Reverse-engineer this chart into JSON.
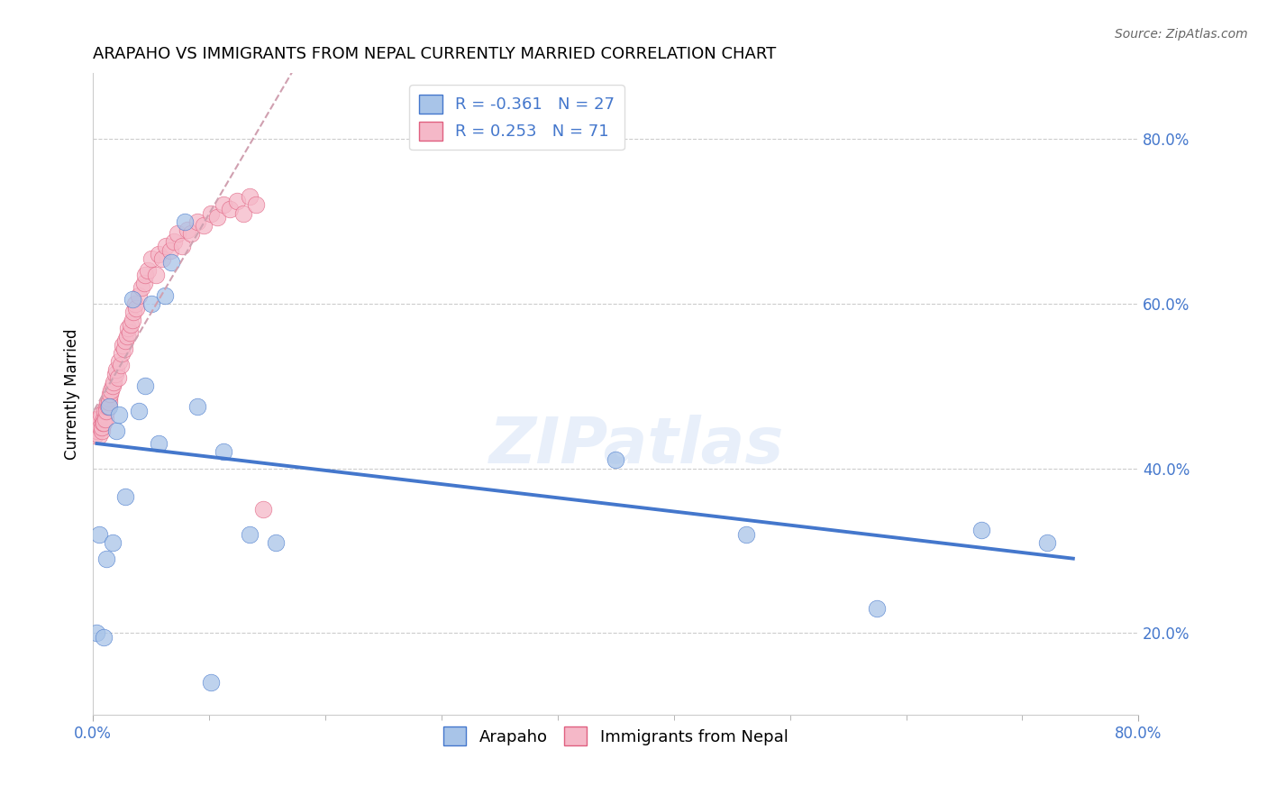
{
  "title": "ARAPAHO VS IMMIGRANTS FROM NEPAL CURRENTLY MARRIED CORRELATION CHART",
  "source": "Source: ZipAtlas.com",
  "ylabel": "Currently Married",
  "legend_blue_R": "-0.361",
  "legend_blue_N": "27",
  "legend_pink_R": "0.253",
  "legend_pink_N": "71",
  "blue_scatter_color": "#a8c4e8",
  "pink_scatter_color": "#f5b8c8",
  "blue_line_color": "#4477cc",
  "pink_line_color": "#e06080",
  "pink_trend_color": "#d0a0b0",
  "watermark": "ZIPatlas",
  "right_yticks": [
    20.0,
    40.0,
    60.0,
    80.0
  ],
  "xlim": [
    0,
    80
  ],
  "ylim": [
    10,
    88
  ],
  "arapaho_x": [
    0.3,
    0.5,
    0.8,
    1.0,
    1.2,
    1.5,
    1.8,
    2.0,
    2.5,
    3.0,
    3.5,
    4.0,
    4.5,
    5.0,
    5.5,
    6.0,
    7.0,
    8.0,
    9.0,
    10.0,
    12.0,
    14.0,
    40.0,
    50.0,
    60.0,
    68.0,
    73.0
  ],
  "arapaho_y": [
    20.0,
    32.0,
    19.5,
    29.0,
    47.5,
    31.0,
    44.5,
    46.5,
    36.5,
    60.5,
    47.0,
    50.0,
    60.0,
    43.0,
    61.0,
    65.0,
    70.0,
    47.5,
    14.0,
    42.0,
    32.0,
    31.0,
    41.0,
    32.0,
    23.0,
    32.5,
    31.0
  ],
  "nepal_x": [
    0.15,
    0.2,
    0.25,
    0.3,
    0.35,
    0.4,
    0.45,
    0.5,
    0.55,
    0.6,
    0.65,
    0.7,
    0.75,
    0.8,
    0.85,
    0.9,
    0.95,
    1.0,
    1.05,
    1.1,
    1.15,
    1.2,
    1.25,
    1.3,
    1.4,
    1.5,
    1.6,
    1.7,
    1.8,
    1.9,
    2.0,
    2.1,
    2.2,
    2.3,
    2.4,
    2.5,
    2.6,
    2.7,
    2.8,
    2.9,
    3.0,
    3.1,
    3.2,
    3.3,
    3.5,
    3.7,
    3.9,
    4.0,
    4.2,
    4.5,
    4.8,
    5.0,
    5.3,
    5.6,
    5.9,
    6.2,
    6.5,
    6.8,
    7.2,
    7.5,
    8.0,
    8.5,
    9.0,
    9.5,
    10.0,
    10.5,
    11.0,
    11.5,
    12.0,
    12.5,
    13.0
  ],
  "nepal_y": [
    44.0,
    45.0,
    44.5,
    46.0,
    44.5,
    45.5,
    44.0,
    46.0,
    45.0,
    46.5,
    44.5,
    45.0,
    45.5,
    46.0,
    45.5,
    47.0,
    46.0,
    47.5,
    47.0,
    48.0,
    47.5,
    48.5,
    48.0,
    49.0,
    49.5,
    50.0,
    50.5,
    51.5,
    52.0,
    51.0,
    53.0,
    52.5,
    54.0,
    55.0,
    54.5,
    55.5,
    56.0,
    57.0,
    56.5,
    57.5,
    58.0,
    59.0,
    60.0,
    59.5,
    61.0,
    62.0,
    62.5,
    63.5,
    64.0,
    65.5,
    63.5,
    66.0,
    65.5,
    67.0,
    66.5,
    67.5,
    68.5,
    67.0,
    69.0,
    68.5,
    70.0,
    69.5,
    71.0,
    70.5,
    72.0,
    71.5,
    72.5,
    71.0,
    73.0,
    72.0,
    35.0
  ]
}
